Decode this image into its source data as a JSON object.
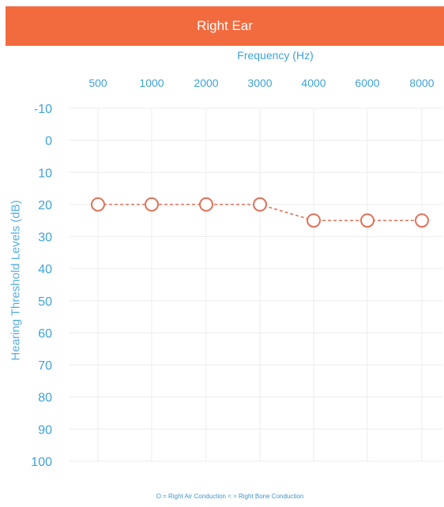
{
  "header": {
    "title": "Right Ear"
  },
  "legend": {
    "text": "O = Right Air Conduction  < > Right Bone Conduction"
  },
  "chart_data": {
    "type": "line",
    "title": "Right Ear",
    "xlabel": "Frequency (Hz)",
    "ylabel": "Hearing Threshold Levels (dB)",
    "categories": [
      "500",
      "1000",
      "2000",
      "3000",
      "4000",
      "6000",
      "8000"
    ],
    "yticks": [
      "-10",
      "0",
      "10",
      "20",
      "30",
      "40",
      "50",
      "60",
      "70",
      "80",
      "90",
      "100"
    ],
    "ylim": [
      -10,
      100
    ],
    "y_inverted": true,
    "grid": true,
    "series": [
      {
        "name": "Right Air Conduction",
        "marker": "circle",
        "color": "#e0705a",
        "values": [
          20,
          20,
          20,
          20,
          25,
          25,
          25
        ]
      }
    ]
  }
}
